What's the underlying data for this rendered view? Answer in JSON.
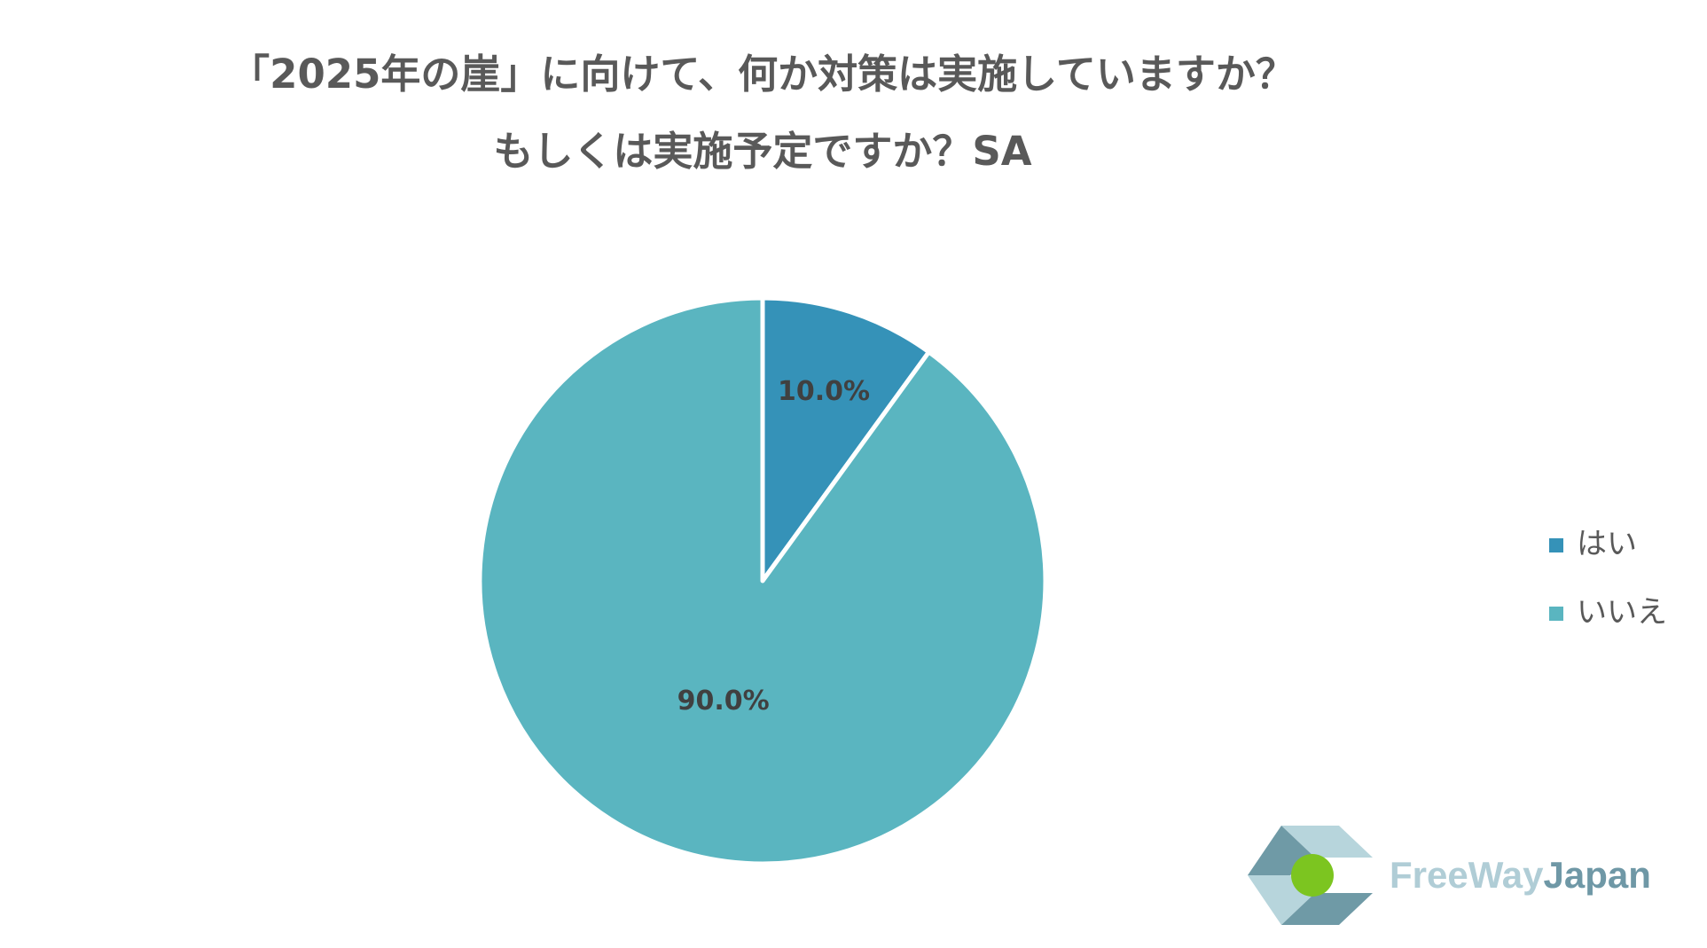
{
  "chart_data": {
    "type": "pie",
    "title_lines": [
      "「2025年の崖」に向けて、何か対策は実施していますか？",
      "もしくは実施予定ですか？SA"
    ],
    "categories": [
      "はい",
      "いいえ"
    ],
    "values": [
      10,
      90
    ],
    "value_labels": [
      "10.0%",
      "90.0%"
    ],
    "colors": [
      "#3592b8",
      "#5ab5c0"
    ],
    "legend": "right"
  },
  "logo": {
    "text_parts": [
      "FreeWay",
      "Japan"
    ]
  }
}
